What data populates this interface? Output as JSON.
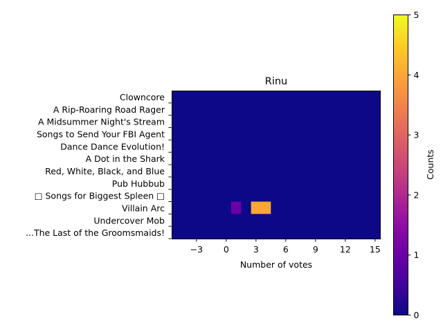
{
  "chart_data": {
    "type": "heatmap",
    "title": "Rinu",
    "xlabel": "Number of votes",
    "ylabel": "",
    "x_ticks": [
      -3,
      0,
      3,
      6,
      9,
      12,
      15
    ],
    "x_tick_labels": [
      "−3",
      "0",
      "3",
      "6",
      "9",
      "12",
      "15"
    ],
    "xlim": [
      -5.5,
      15.5
    ],
    "categories": [
      "Clowncore",
      "A Rip-Roaring Road Rager",
      "A Midsummer Night's Stream",
      "Songs to Send Your FBI Agent",
      "Dance Dance Evolution!",
      "A Dot in the Shark",
      "Red, White, Black, and Blue",
      "Pub Hubbub",
      "□ Songs for Biggest Spleen □",
      "Villain Arc",
      "Undercover Mob",
      "...The Last of the Groomsmaids!"
    ],
    "cells": [
      {
        "category": "Villain Arc",
        "x": 1,
        "count": 1
      },
      {
        "category": "Villain Arc",
        "x": 3,
        "count": 4
      },
      {
        "category": "Villain Arc",
        "x": 4,
        "count": 4
      }
    ],
    "colorbar": {
      "label": "Counts",
      "min": 0,
      "max": 5,
      "ticks": [
        0,
        1,
        2,
        3,
        4,
        5
      ],
      "colormap": "plasma"
    }
  }
}
